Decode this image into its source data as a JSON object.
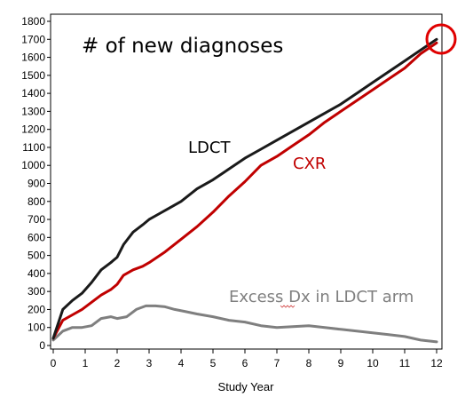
{
  "chart_data": {
    "type": "line",
    "title": "# of new diagnoses",
    "xlabel": "Study Year",
    "ylabel": "",
    "xlim": [
      0,
      12
    ],
    "ylim": [
      0,
      1800
    ],
    "x_ticks": [
      "0",
      "1",
      "2",
      "3",
      "4",
      "5",
      "6",
      "7",
      "8",
      "9",
      "10",
      "11",
      "12"
    ],
    "y_ticks": [
      "0",
      "100",
      "200",
      "300",
      "400",
      "500",
      "600",
      "700",
      "800",
      "900",
      "1000",
      "1100",
      "1200",
      "1300",
      "1400",
      "1500",
      "1600",
      "1700",
      "1800"
    ],
    "grid": false,
    "legend": "none",
    "series": [
      {
        "name": "LDCT",
        "color": "#1a1a1a",
        "x": [
          0,
          0.3,
          0.6,
          0.9,
          1.2,
          1.5,
          1.8,
          2.0,
          2.2,
          2.5,
          2.8,
          3.0,
          3.3,
          3.6,
          4.0,
          4.5,
          5.0,
          5.5,
          6.0,
          6.5,
          7.0,
          7.5,
          8.0,
          8.5,
          9.0,
          9.5,
          10.0,
          10.5,
          11.0,
          11.5,
          12.0
        ],
        "y": [
          40,
          200,
          250,
          290,
          350,
          420,
          460,
          490,
          560,
          630,
          670,
          700,
          730,
          760,
          800,
          870,
          920,
          980,
          1040,
          1090,
          1140,
          1190,
          1240,
          1290,
          1340,
          1400,
          1460,
          1520,
          1580,
          1640,
          1700
        ]
      },
      {
        "name": "CXR",
        "color": "#c00000",
        "x": [
          0,
          0.3,
          0.6,
          0.9,
          1.2,
          1.5,
          1.8,
          2.0,
          2.2,
          2.5,
          2.8,
          3.0,
          3.5,
          4.0,
          4.5,
          5.0,
          5.5,
          6.0,
          6.5,
          7.0,
          7.5,
          8.0,
          8.5,
          9.0,
          9.5,
          10.0,
          10.5,
          11.0,
          11.5,
          12.0
        ],
        "y": [
          40,
          140,
          170,
          200,
          240,
          280,
          310,
          340,
          390,
          420,
          440,
          460,
          520,
          590,
          660,
          740,
          830,
          910,
          1000,
          1050,
          1110,
          1170,
          1240,
          1300,
          1360,
          1420,
          1480,
          1540,
          1620,
          1680
        ]
      },
      {
        "name": "Excess Dx in LDCT arm",
        "color": "#7f7f7f",
        "x": [
          0,
          0.3,
          0.6,
          0.9,
          1.2,
          1.5,
          1.8,
          2.0,
          2.3,
          2.6,
          2.9,
          3.2,
          3.5,
          3.8,
          4.1,
          4.5,
          5.0,
          5.5,
          6.0,
          6.5,
          7.0,
          7.5,
          8.0,
          8.5,
          9.0,
          9.5,
          10.0,
          10.5,
          11.0,
          11.5,
          12.0
        ],
        "y": [
          30,
          80,
          100,
          100,
          110,
          150,
          160,
          150,
          160,
          200,
          220,
          220,
          215,
          200,
          190,
          175,
          160,
          140,
          130,
          110,
          100,
          105,
          110,
          100,
          90,
          80,
          70,
          60,
          50,
          30,
          20
        ]
      }
    ],
    "annotations": {
      "ldct_label": "LDCT",
      "cxr_label": "CXR",
      "excess_label": "Excess Dx in LDCT arm"
    },
    "highlight": {
      "shape": "circle",
      "color": "#e00000",
      "target": "end of lines at year 12"
    }
  }
}
